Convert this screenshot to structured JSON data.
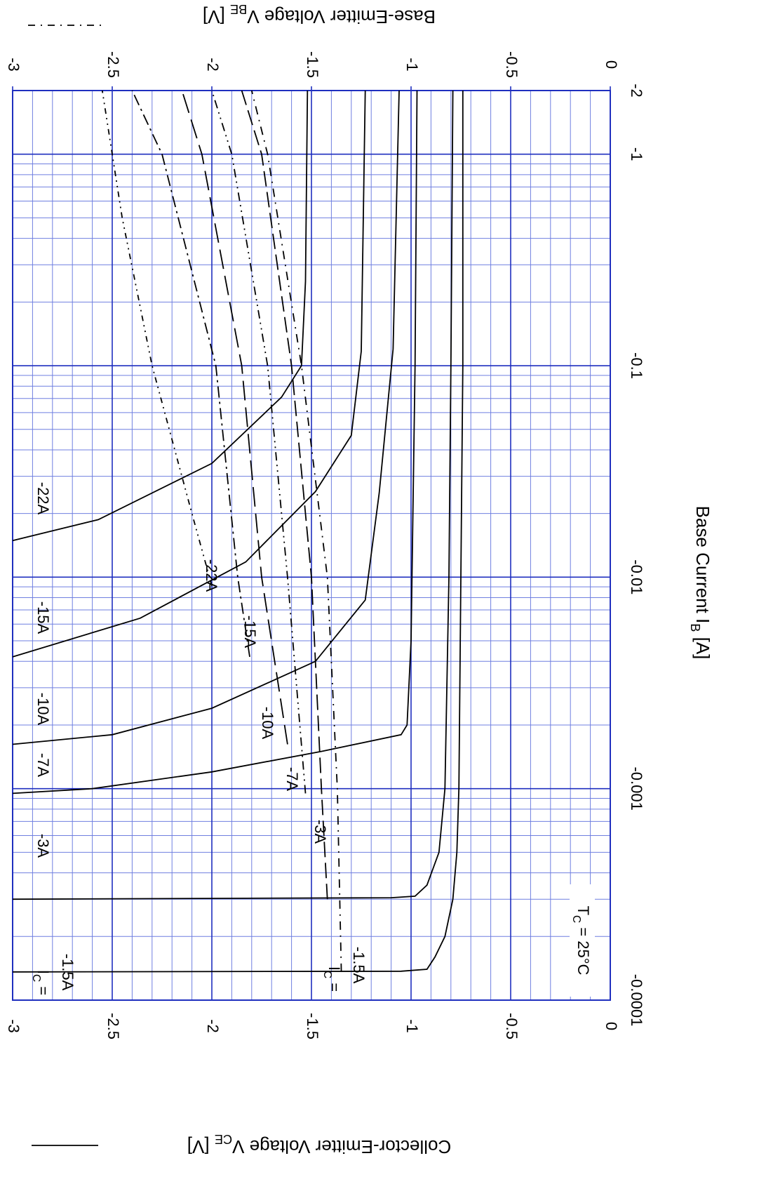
{
  "chart_data": {
    "type": "line",
    "x_label": {
      "text": "Base Current  I",
      "sub": "B",
      "tail": "  [A]"
    },
    "y_label": {
      "text": "Collector-Emitter Voltage  V",
      "sub": "CE",
      "tail": " [V]"
    },
    "y2_label": {
      "text": "Base-Emitter Voltage  V",
      "sub": "BE",
      "tail": " [V]"
    },
    "ic_label": {
      "text": "I",
      "sub": "C",
      "tail": " ="
    },
    "annotation": {
      "text": "T",
      "sub": "C",
      "tail": " = 25°C"
    },
    "xscale": "log",
    "xlim": [
      -0.0001,
      -2
    ],
    "xticks": [
      -0.0001,
      -0.001,
      -0.01,
      -0.1,
      -1,
      -2
    ],
    "ylim": [
      -3,
      0
    ],
    "yticks": [
      -3,
      -2.5,
      -2,
      -1.5,
      -1,
      -0.5,
      0
    ],
    "y2lim": [
      -3,
      0
    ],
    "y2ticks": [
      -3,
      -2.5,
      -2,
      -1.5,
      -1,
      -0.5,
      0
    ],
    "grid": true,
    "grid_color": "#1f2fbf",
    "minor_grid_color": "#6f7fe0",
    "series": [
      {
        "name": "-1.5A",
        "color": "#000000",
        "x": [
          -0.000136,
          -0.000137,
          -0.00014,
          -0.00016,
          -0.0002,
          -0.0003,
          -0.0005,
          -0.001,
          -0.01,
          -0.1,
          -2
        ],
        "values": [
          -3,
          -1.05,
          -0.92,
          -0.88,
          -0.83,
          -0.79,
          -0.77,
          -0.76,
          -0.75,
          -0.74,
          -0.74
        ]
      },
      {
        "name": "-3A",
        "color": "#000000",
        "x": [
          -0.0003,
          -0.000305,
          -0.00031,
          -0.00035,
          -0.0005,
          -0.001,
          -0.01,
          -0.1,
          -2
        ],
        "values": [
          -3,
          -1.1,
          -0.98,
          -0.92,
          -0.86,
          -0.83,
          -0.81,
          -0.8,
          -0.79
        ]
      },
      {
        "name": "-7A",
        "color": "#000000",
        "x": [
          -0.00095,
          -0.001,
          -0.0012,
          -0.0015,
          -0.0018,
          -0.002,
          -0.005,
          -0.1,
          -2
        ],
        "values": [
          -3,
          -2.6,
          -2.0,
          -1.45,
          -1.05,
          -1.02,
          -1.0,
          -0.98,
          -0.97
        ]
      },
      {
        "name": "-10A",
        "color": "#000000",
        "x": [
          -0.00162,
          -0.0018,
          -0.0024,
          -0.004,
          -0.0078,
          -0.025,
          -0.12,
          -2
        ],
        "values": [
          -3,
          -2.5,
          -2.0,
          -1.48,
          -1.23,
          -1.16,
          -1.09,
          -1.06
        ]
      },
      {
        "name": "-15A",
        "color": "#000000",
        "x": [
          -0.0042,
          -0.0064,
          -0.0118,
          -0.0254,
          -0.0468,
          -0.117,
          -2
        ],
        "values": [
          -3,
          -2.36,
          -1.83,
          -1.48,
          -1.3,
          -1.25,
          -1.23
        ]
      },
      {
        "name": "-22A",
        "color": "#000000",
        "x": [
          -0.0149,
          -0.0187,
          -0.0345,
          -0.071,
          -0.1,
          -0.25,
          -2
        ],
        "values": [
          -3,
          -2.57,
          -2.0,
          -1.65,
          -1.55,
          -1.53,
          -1.52
        ]
      },
      {
        "name": "-1.5A",
        "color": "#000000",
        "axis": "y2",
        "dash": "12 8 2 8",
        "x": [
          -0.000136,
          -0.001,
          -0.01,
          -0.1,
          -1,
          -2
        ],
        "values": [
          -1.35,
          -1.37,
          -1.42,
          -1.55,
          -1.72,
          -1.8
        ]
      },
      {
        "name": "-3A",
        "color": "#000000",
        "axis": "y2",
        "dash": "22 8",
        "x": [
          -0.0003,
          -0.001,
          -0.01,
          -0.1,
          -1,
          -2
        ],
        "values": [
          -1.42,
          -1.45,
          -1.5,
          -1.6,
          -1.75,
          -1.85
        ]
      },
      {
        "name": "-7A",
        "color": "#000000",
        "axis": "y2",
        "dash": "12 6 2 6 2 6",
        "x": [
          -0.00095,
          -0.01,
          -0.1,
          -1,
          -2
        ],
        "values": [
          -1.53,
          -1.62,
          -1.72,
          -1.9,
          -2.0
        ]
      },
      {
        "name": "-10A",
        "color": "#000000",
        "axis": "y2",
        "dash": "28 10",
        "x": [
          -0.00162,
          -0.01,
          -0.1,
          -1,
          -2
        ],
        "values": [
          -1.62,
          -1.75,
          -1.85,
          -2.05,
          -2.15
        ]
      },
      {
        "name": "-15A",
        "color": "#000000",
        "axis": "y2",
        "dash": "16 6 3 6",
        "x": [
          -0.0042,
          -0.01,
          -0.1,
          -1,
          -2
        ],
        "values": [
          -1.81,
          -1.87,
          -1.98,
          -2.25,
          -2.4
        ]
      },
      {
        "name": "-22A",
        "color": "#000000",
        "axis": "y2",
        "dash": "8 6 2 6 2 6",
        "x": [
          -0.0091,
          -0.02,
          -0.1,
          -0.5,
          -2
        ],
        "values": [
          -2.0,
          -2.1,
          -2.3,
          -2.45,
          -2.55
        ]
      }
    ]
  }
}
